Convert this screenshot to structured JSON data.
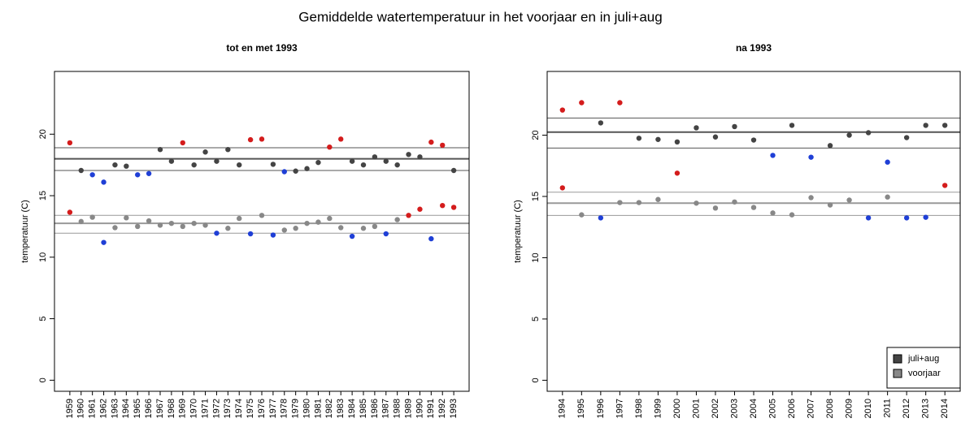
{
  "title": "Gemiddelde watertemperatuur in het voorjaar en in juli+aug",
  "chart_data": [
    {
      "type": "scatter",
      "title": "tot en met 1993",
      "ylabel": "temperatuur (C)",
      "categories": [
        "1959",
        "1960",
        "1961",
        "1962",
        "1963",
        "1964",
        "1965",
        "1966",
        "1967",
        "1968",
        "1969",
        "1970",
        "1971",
        "1972",
        "1973",
        "1974",
        "1975",
        "1976",
        "1977",
        "1978",
        "1979",
        "1980",
        "1981",
        "1982",
        "1983",
        "1984",
        "1985",
        "1986",
        "1987",
        "1988",
        "1989",
        "1990",
        "1991",
        "1992",
        "1993"
      ],
      "ylim": [
        -0.9,
        25.1
      ],
      "yticks": [
        0,
        5,
        10,
        15,
        20
      ],
      "legend": false,
      "series": [
        {
          "color": "#444444",
          "values": [
            19.3,
            17.05,
            16.7,
            16.1,
            17.5,
            17.4,
            16.7,
            16.8,
            18.75,
            17.8,
            19.3,
            17.5,
            18.55,
            17.8,
            18.75,
            17.5,
            19.55,
            19.6,
            17.55,
            16.95,
            17.0,
            17.2,
            17.7,
            18.95,
            19.6,
            17.8,
            17.5,
            18.15,
            17.8,
            17.5,
            18.35,
            18.15,
            19.35,
            19.1,
            17.05
          ],
          "point_colors": [
            "#d41c1c",
            "#444444",
            "#1f3fd6",
            "#1f3fd6",
            "#444444",
            "#444444",
            "#1f3fd6",
            "#1f3fd6",
            "#444444",
            "#444444",
            "#d41c1c",
            "#444444",
            "#444444",
            "#444444",
            "#444444",
            "#444444",
            "#d41c1c",
            "#d41c1c",
            "#444444",
            "#1f3fd6",
            "#444444",
            "#444444",
            "#444444",
            "#d41c1c",
            "#d41c1c",
            "#444444",
            "#444444",
            "#444444",
            "#444444",
            "#444444",
            "#444444",
            "#444444",
            "#d41c1c",
            "#d41c1c",
            "#444444"
          ],
          "hlines": {
            "mean": 18.0,
            "lower": 17.05,
            "upper": 18.9
          }
        },
        {
          "color": "#888888",
          "values": [
            13.65,
            12.9,
            13.25,
            11.2,
            12.4,
            13.2,
            12.5,
            12.95,
            12.6,
            12.75,
            12.5,
            12.75,
            12.6,
            11.95,
            12.35,
            13.15,
            11.9,
            13.4,
            11.8,
            12.2,
            12.35,
            12.75,
            12.85,
            13.15,
            12.4,
            11.7,
            12.35,
            12.5,
            11.9,
            13.05,
            13.4,
            13.9,
            11.5,
            14.2,
            14.05
          ],
          "point_colors": [
            "#d41c1c",
            "#888888",
            "#888888",
            "#1f3fd6",
            "#888888",
            "#888888",
            "#888888",
            "#888888",
            "#888888",
            "#888888",
            "#888888",
            "#888888",
            "#888888",
            "#1f3fd6",
            "#888888",
            "#888888",
            "#1f3fd6",
            "#888888",
            "#1f3fd6",
            "#888888",
            "#888888",
            "#888888",
            "#888888",
            "#888888",
            "#888888",
            "#1f3fd6",
            "#888888",
            "#888888",
            "#1f3fd6",
            "#888888",
            "#d41c1c",
            "#d41c1c",
            "#1f3fd6",
            "#d41c1c",
            "#d41c1c"
          ],
          "hlines": {
            "mean": 12.75,
            "lower": 11.95,
            "upper": 13.4
          }
        }
      ]
    },
    {
      "type": "scatter",
      "title": "na 1993",
      "ylabel": "temperatuur (C)",
      "categories": [
        "1994",
        "1995",
        "1996",
        "1997",
        "1998",
        "1999",
        "2000",
        "2001",
        "2002",
        "2003",
        "2004",
        "2005",
        "2006",
        "2007",
        "2008",
        "2009",
        "2010",
        "2011",
        "2012",
        "2013",
        "2014"
      ],
      "ylim": [
        -0.9,
        25.2
      ],
      "yticks": [
        0,
        5,
        10,
        15,
        20
      ],
      "legend": "bottom-right",
      "series": [
        {
          "name": "juli+aug",
          "color": "#444444",
          "values": [
            22.05,
            22.65,
            21.0,
            22.65,
            19.75,
            19.65,
            19.45,
            20.6,
            19.85,
            20.7,
            19.6,
            18.35,
            20.8,
            18.2,
            19.15,
            20.0,
            20.2,
            17.8,
            19.8,
            20.8,
            20.8
          ],
          "point_colors": [
            "#d41c1c",
            "#d41c1c",
            "#444444",
            "#d41c1c",
            "#444444",
            "#444444",
            "#444444",
            "#444444",
            "#444444",
            "#444444",
            "#444444",
            "#1f3fd6",
            "#444444",
            "#1f3fd6",
            "#444444",
            "#444444",
            "#444444",
            "#1f3fd6",
            "#444444",
            "#444444",
            "#444444"
          ],
          "hlines": {
            "mean": 20.25,
            "lower": 18.95,
            "upper": 21.4
          }
        },
        {
          "name": "voorjaar",
          "color": "#888888",
          "values": [
            15.7,
            13.5,
            13.25,
            14.5,
            14.5,
            14.75,
            16.9,
            14.45,
            14.05,
            14.55,
            14.1,
            13.65,
            13.5,
            14.9,
            14.3,
            14.7,
            13.25,
            14.95,
            13.25,
            13.3,
            15.9
          ],
          "point_colors": [
            "#d41c1c",
            "#888888",
            "#1f3fd6",
            "#888888",
            "#888888",
            "#888888",
            "#d41c1c",
            "#888888",
            "#888888",
            "#888888",
            "#888888",
            "#888888",
            "#888888",
            "#888888",
            "#888888",
            "#888888",
            "#1f3fd6",
            "#888888",
            "#1f3fd6",
            "#1f3fd6",
            "#d41c1c"
          ],
          "hlines": {
            "mean": 14.45,
            "lower": 13.45,
            "upper": 15.35
          }
        }
      ]
    }
  ]
}
